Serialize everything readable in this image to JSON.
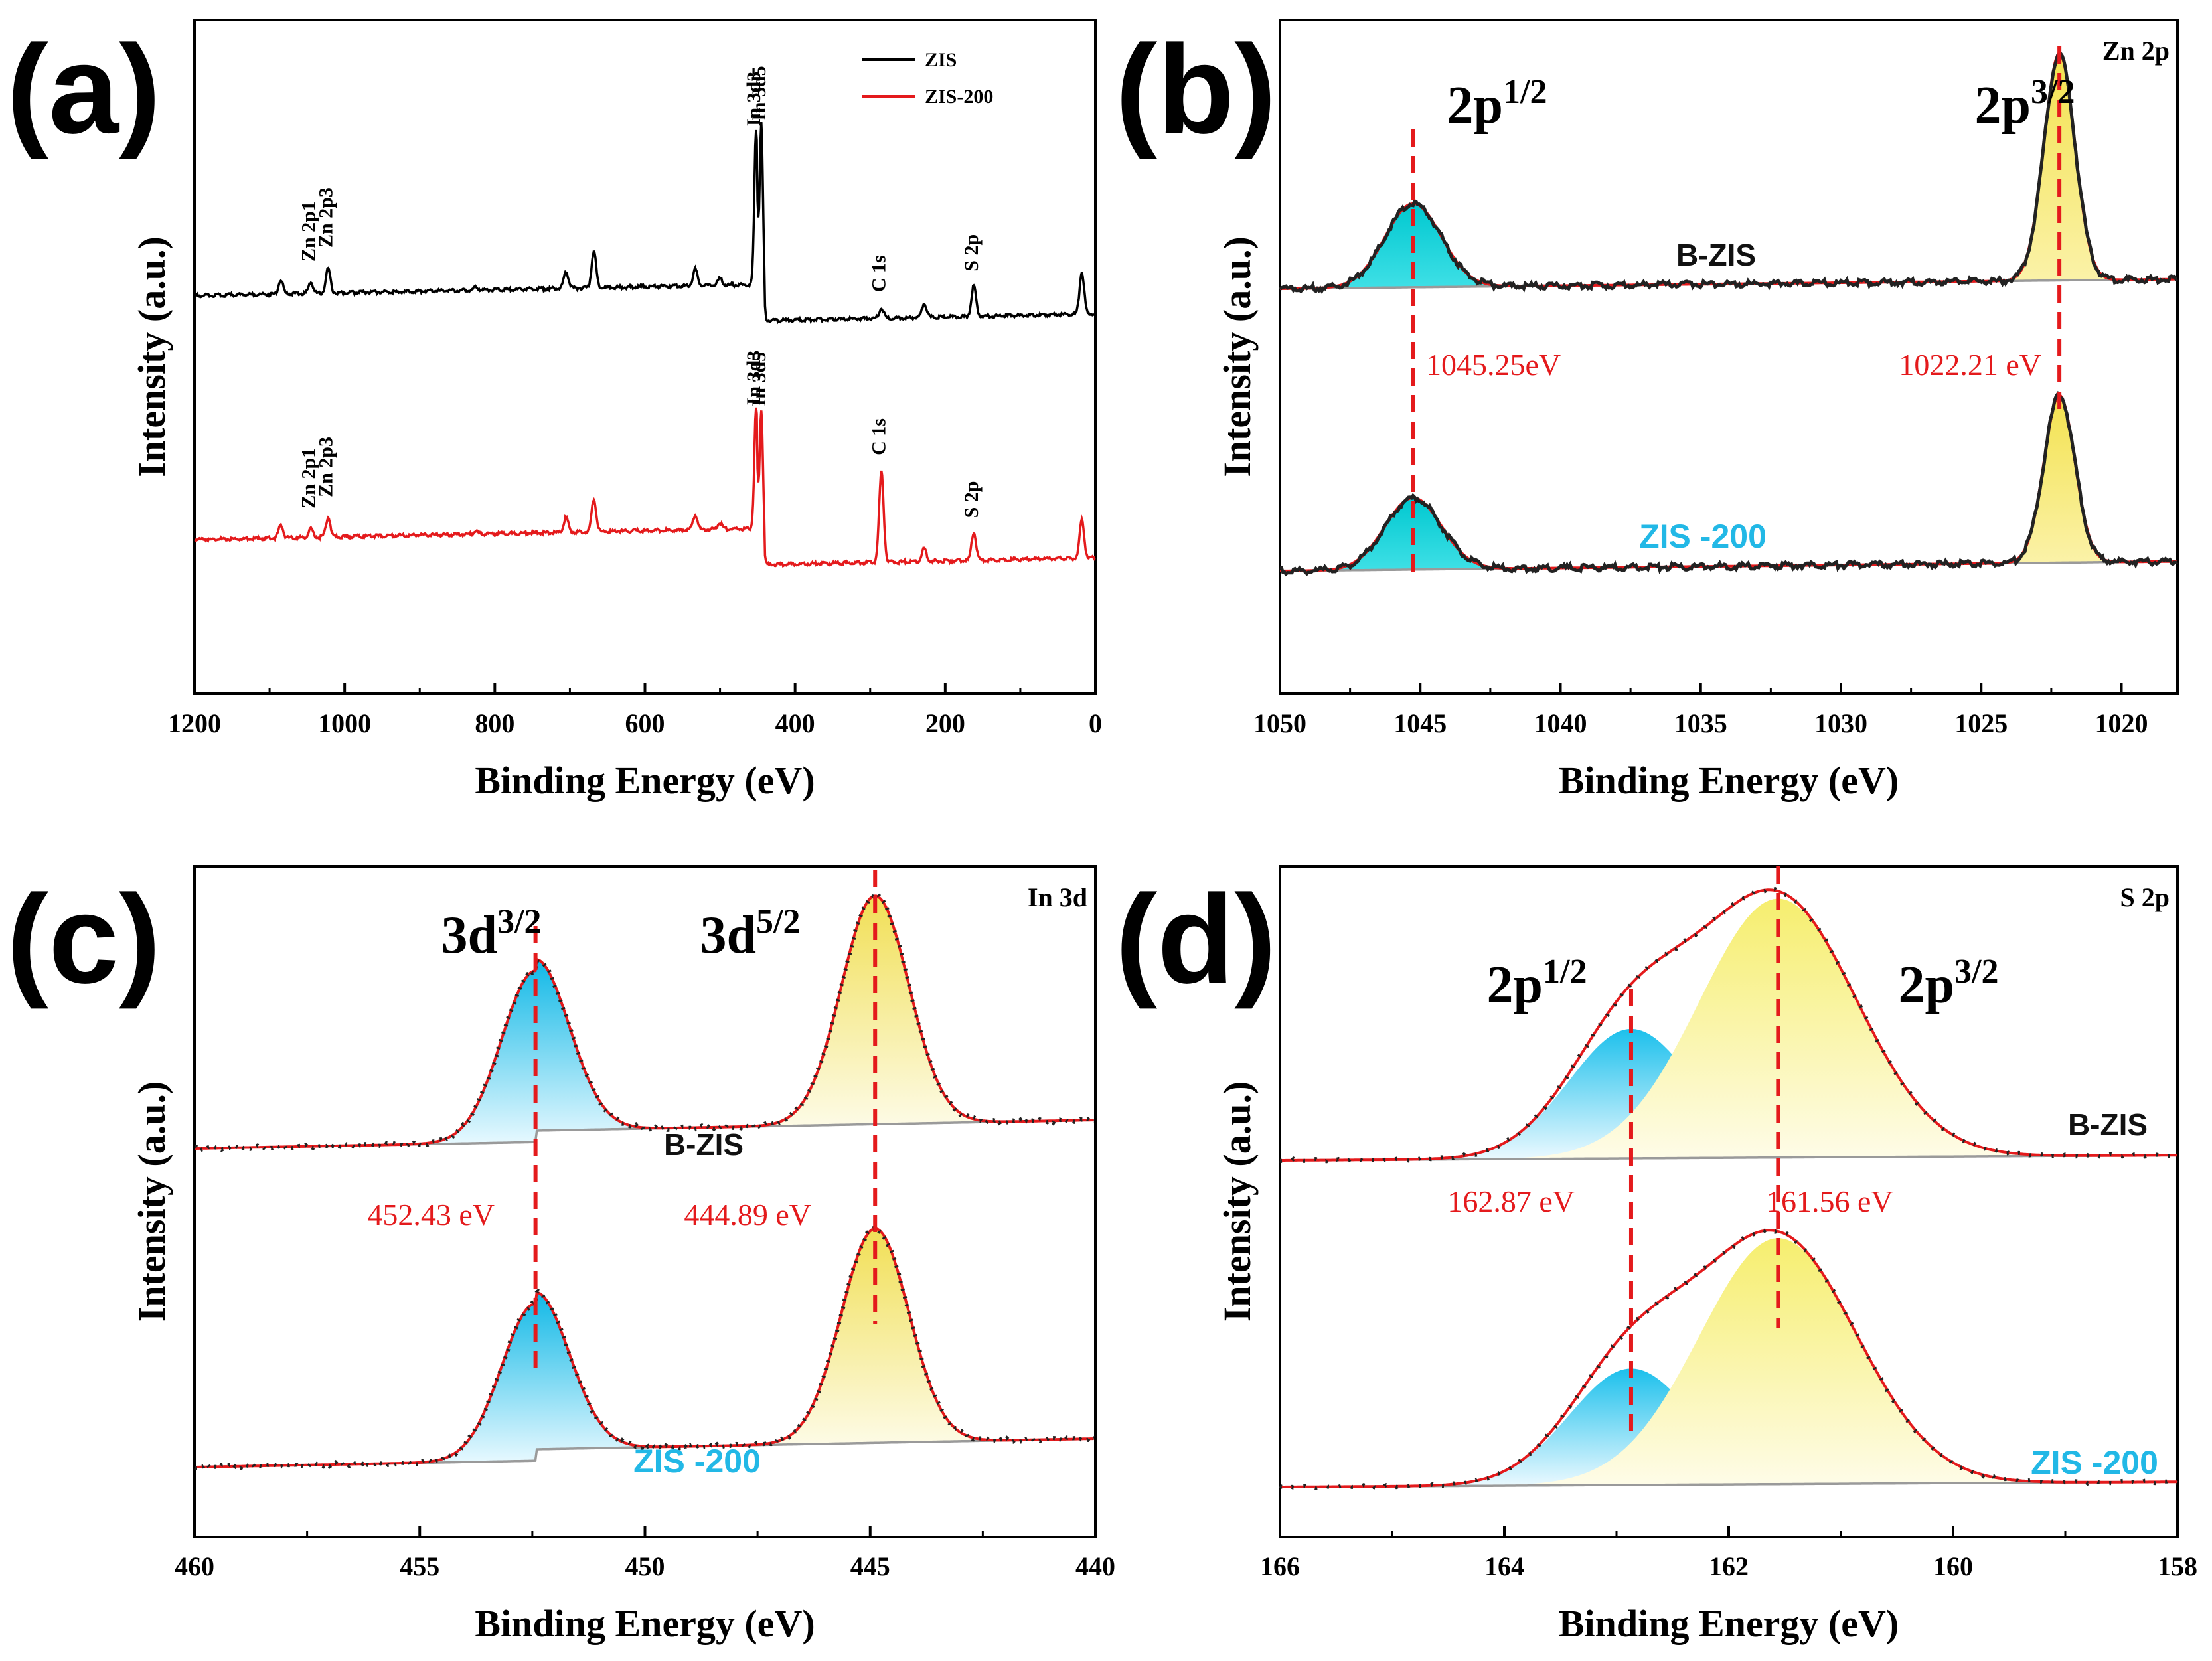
{
  "chart_data": [
    {
      "id": "a",
      "type": "line",
      "panel_label": "(a)",
      "xlabel": "Binding Energy (eV)",
      "ylabel": "Intensity (a.u.)",
      "xlim": [
        1200,
        0
      ],
      "xticks": [
        "1200",
        "1000",
        "800",
        "600",
        "400",
        "200",
        "0"
      ],
      "xtick_values": [
        1200,
        1000,
        800,
        600,
        400,
        200,
        0
      ],
      "legend": {
        "position": "top-right",
        "entries": [
          {
            "label": "ZIS",
            "color": "#000000"
          },
          {
            "label": "ZIS-200",
            "color": "#e41a1c"
          }
        ]
      },
      "series": [
        {
          "name": "ZIS",
          "color": "#000000",
          "offset": 1.75,
          "peaks": [
            {
              "label": "Zn 2p1",
              "x": 1045,
              "h": 0.08
            },
            {
              "label": "Zn 2p3",
              "x": 1022,
              "h": 0.18
            },
            {
              "label": "In 3d3",
              "x": 452,
              "h": 1.05
            },
            {
              "label": "In 3d5",
              "x": 445,
              "h": 1.3
            },
            {
              "label": "C 1s",
              "x": 285,
              "h": 0.07
            },
            {
              "label": "S 2p",
              "x": 162,
              "h": 0.22
            }
          ]
        },
        {
          "name": "ZIS-200",
          "color": "#e41a1c",
          "offset": 0.0,
          "peaks": [
            {
              "label": "Zn 2p1",
              "x": 1045,
              "h": 0.06
            },
            {
              "label": "Zn 2p3",
              "x": 1022,
              "h": 0.14
            },
            {
              "label": "In 3d3",
              "x": 452,
              "h": 0.8
            },
            {
              "label": "In 3d5",
              "x": 445,
              "h": 1.0
            },
            {
              "label": "C 1s",
              "x": 285,
              "h": 0.65
            },
            {
              "label": "S 2p",
              "x": 162,
              "h": 0.2
            }
          ]
        }
      ]
    },
    {
      "id": "b",
      "type": "line",
      "panel_label": "(b)",
      "corner_label": "Zn 2p",
      "xlabel": "Binding Energy (eV)",
      "ylabel": "Intensity (a.u.)",
      "xlim": [
        1050,
        1018
      ],
      "xticks": [
        "1050",
        "1045",
        "1040",
        "1035",
        "1030",
        "1025",
        "1020"
      ],
      "xtick_values": [
        1050,
        1045,
        1040,
        1035,
        1030,
        1025,
        1020
      ],
      "peaks": [
        {
          "label": "2p",
          "sup": "1/2",
          "position_eV": 1045.25,
          "energy_label": "1045.25eV",
          "color": "#00d2d2"
        },
        {
          "label": "2p",
          "sup": "3/2",
          "position_eV": 1022.21,
          "energy_label": "1022.21  eV",
          "color": "#f7e96a"
        }
      ],
      "series": [
        {
          "name": "B-ZIS",
          "label": "B-ZIS",
          "offset": 1.0,
          "amplitudes": [
            0.35,
            0.95
          ],
          "widths": [
            1.0,
            0.55
          ]
        },
        {
          "name": "ZIS -200",
          "label": "ZIS -200",
          "offset": 0.0,
          "amplitudes": [
            0.3,
            0.7
          ],
          "widths": [
            1.0,
            0.55
          ]
        }
      ]
    },
    {
      "id": "c",
      "type": "line",
      "panel_label": "(c)",
      "corner_label": "In 3d",
      "xlabel": "Binding Energy (eV)",
      "ylabel": "Intensity (a.u.)",
      "xlim": [
        460,
        440
      ],
      "xticks": [
        "460",
        "455",
        "450",
        "445",
        "440"
      ],
      "xtick_values": [
        460,
        455,
        450,
        445,
        440
      ],
      "peaks": [
        {
          "label": "3d",
          "sup": "3/2",
          "position_eV": 452.43,
          "energy_label": "452.43  eV",
          "color": "#1ec0e8"
        },
        {
          "label": "3d",
          "sup": "5/2",
          "position_eV": 444.89,
          "energy_label": "444.89  eV",
          "color": "#f5e67a"
        }
      ],
      "series": [
        {
          "name": "B-ZIS",
          "label": "B-ZIS",
          "offset": 1.0,
          "amplitudes": [
            0.6,
            0.8
          ],
          "widths": [
            0.75,
            0.75
          ]
        },
        {
          "name": "ZIS -200",
          "label": "ZIS -200",
          "offset": 0.0,
          "amplitudes": [
            0.55,
            0.75
          ],
          "widths": [
            0.75,
            0.75
          ]
        }
      ]
    },
    {
      "id": "d",
      "type": "line",
      "panel_label": "(d)",
      "corner_label": "S 2p",
      "xlabel": "Binding Energy (eV)",
      "ylabel": "Intensity (a.u.)",
      "xlim": [
        166,
        158
      ],
      "xticks": [
        "166",
        "164",
        "162",
        "160",
        "158"
      ],
      "xtick_values": [
        166,
        164,
        162,
        160,
        158
      ],
      "peaks": [
        {
          "label": "2p",
          "sup": "1/2",
          "position_eV": 162.87,
          "energy_label": "162.87  eV",
          "color": "#22c5ee"
        },
        {
          "label": "2p",
          "sup": "3/2",
          "position_eV": 161.56,
          "energy_label": "161.56  eV",
          "color": "#f5ef8a"
        }
      ],
      "series": [
        {
          "name": "B-ZIS",
          "label": "B-ZIS",
          "offset": 1.0,
          "amplitudes": [
            0.5,
            1.0
          ],
          "widths": [
            0.55,
            0.7
          ]
        },
        {
          "name": "ZIS -200",
          "label": "ZIS -200",
          "offset": 0.0,
          "amplitudes": [
            0.45,
            0.95
          ],
          "widths": [
            0.55,
            0.7
          ]
        }
      ]
    }
  ]
}
